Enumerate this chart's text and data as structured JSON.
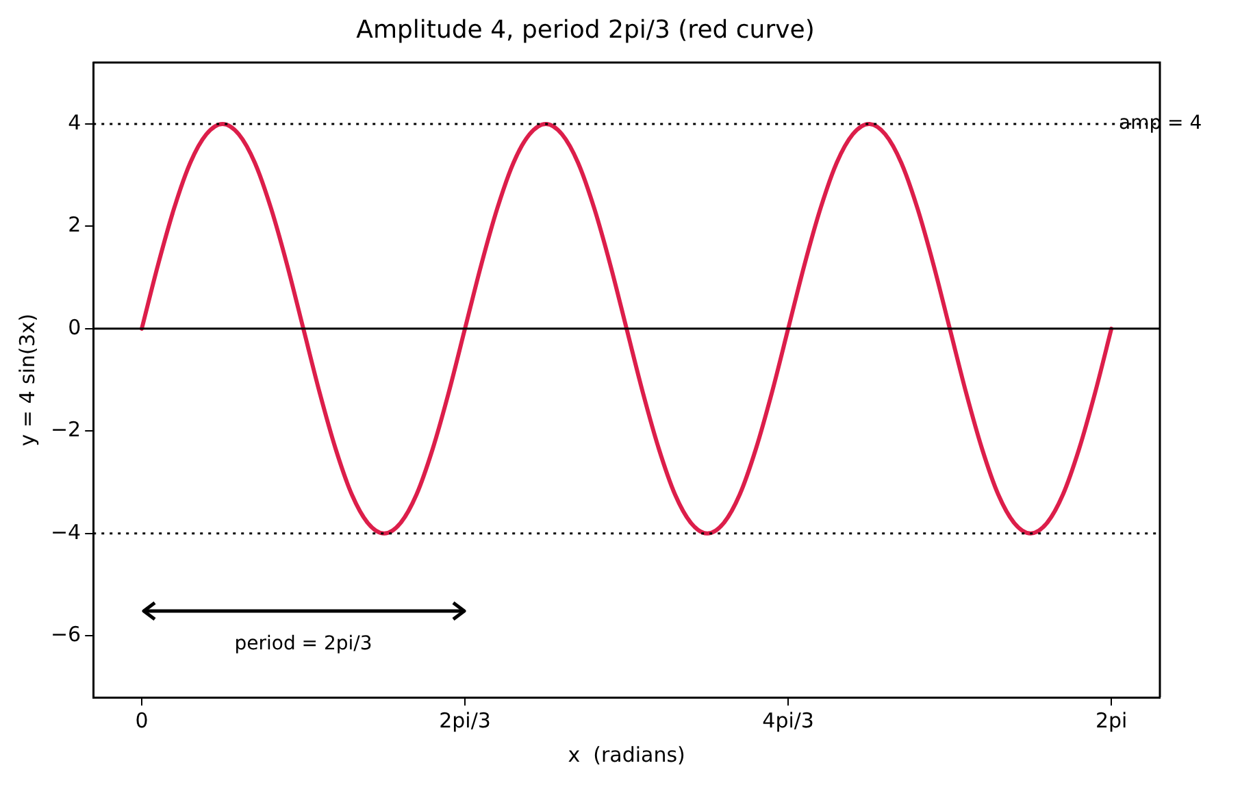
{
  "chart_data": {
    "type": "line",
    "title": "Amplitude 4, period 2pi/3 (red curve)",
    "xlabel": "x  (radians)",
    "ylabel": "y = 4 sin(3x)",
    "categories": [
      "0",
      null,
      null,
      null,
      null,
      null,
      null,
      null,
      null,
      null,
      null,
      null,
      null,
      null,
      null,
      null,
      null,
      null,
      null,
      null,
      "2pi/3",
      null,
      null,
      null,
      null,
      null,
      null,
      null,
      null,
      null,
      null,
      null,
      null,
      null,
      null,
      null,
      null,
      null,
      null,
      null,
      "4pi/3",
      null,
      null,
      null,
      null,
      null,
      null,
      null,
      null,
      null,
      null,
      null,
      null,
      null,
      null,
      null,
      null,
      null,
      null,
      null,
      "2pi"
    ],
    "series": [
      {
        "color": "#dc1e4a",
        "values": [
          0,
          1.24,
          2.35,
          3.24,
          3.8,
          4,
          3.8,
          3.24,
          2.35,
          1.24,
          0,
          -1.24,
          -2.35,
          -3.24,
          -3.8,
          -4,
          -3.8,
          -3.24,
          -2.35,
          -1.24,
          0,
          1.24,
          2.35,
          3.24,
          3.8,
          4,
          3.8,
          3.24,
          2.35,
          1.24,
          0,
          -1.24,
          -2.35,
          -3.24,
          -3.8,
          -4,
          -3.8,
          -3.24,
          -2.35,
          -1.24,
          0,
          1.24,
          2.35,
          3.24,
          3.8,
          4,
          3.8,
          3.24,
          2.35,
          1.24,
          0,
          -1.24,
          -2.35,
          -3.24,
          -3.8,
          -4,
          -3.8,
          -3.24,
          -2.35,
          -1.24,
          0
        ]
      }
    ],
    "ylim": [
      -7.2,
      5.2
    ],
    "yticks": [
      -6,
      -4,
      -2,
      0,
      2,
      4
    ],
    "ref_lines": [
      {
        "axis": "y",
        "value": 4,
        "label": "amp = 4",
        "color": "#000000",
        "line_style": "dotted"
      },
      {
        "axis": "y",
        "value": -4,
        "label": null,
        "color": "#000000",
        "line_style": "dotted"
      },
      {
        "axis": "y",
        "value": 0,
        "label": null,
        "color": "#000000",
        "line_style": "solid"
      }
    ],
    "annotations": [
      "period = 2pi/3"
    ],
    "grid": false,
    "legend": false,
    "marker": "none",
    "line_style": "solid"
  }
}
